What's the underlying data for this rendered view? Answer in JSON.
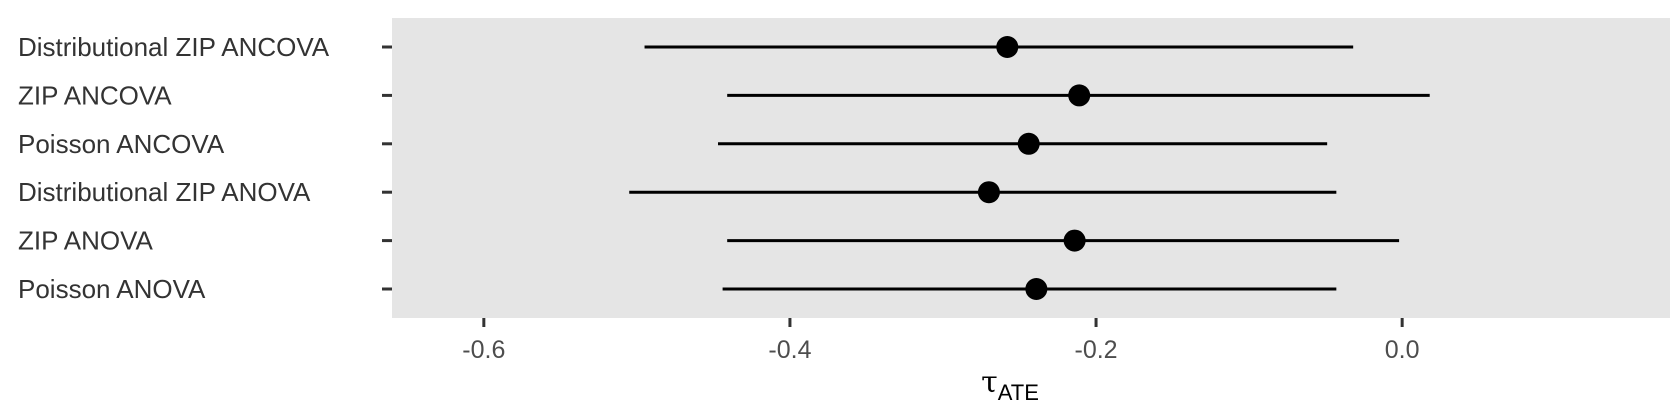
{
  "chart_data": {
    "type": "forest",
    "xlabel": "τ",
    "xlabel_subscript": "ATE",
    "xlim": [
      -0.66,
      0.175
    ],
    "xticks": [
      -0.6,
      -0.4,
      -0.2,
      0.0
    ],
    "xtick_labels": [
      "-0.6",
      "-0.4",
      "-0.2",
      "0.0"
    ],
    "grid": false,
    "panel_color": "#e5e5e5",
    "point_color": "#000000",
    "rows": [
      {
        "label": "Distributional ZIP ANCOVA",
        "estimate": -0.258,
        "lower": -0.495,
        "upper": -0.032
      },
      {
        "label": "ZIP ANCOVA",
        "estimate": -0.211,
        "lower": -0.441,
        "upper": 0.018
      },
      {
        "label": "Poisson ANCOVA",
        "estimate": -0.244,
        "lower": -0.447,
        "upper": -0.049
      },
      {
        "label": "Distributional ZIP ANOVA",
        "estimate": -0.27,
        "lower": -0.505,
        "upper": -0.043
      },
      {
        "label": "ZIP ANOVA",
        "estimate": -0.214,
        "lower": -0.441,
        "upper": -0.002
      },
      {
        "label": "Poisson ANOVA",
        "estimate": -0.239,
        "lower": -0.444,
        "upper": -0.043
      }
    ]
  }
}
